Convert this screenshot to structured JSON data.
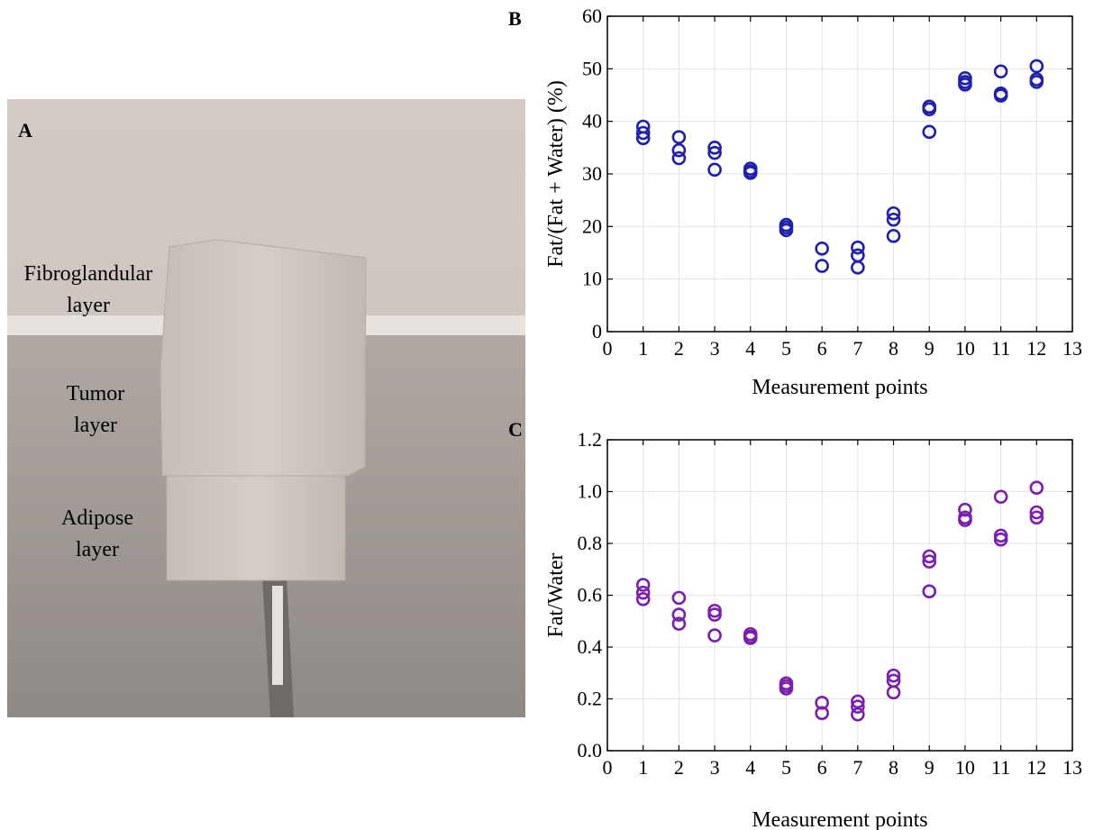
{
  "photo": {
    "panel_label": "A",
    "labels": [
      {
        "lines": [
          "Fibroglandular",
          "layer"
        ]
      },
      {
        "lines": [
          "Tumor",
          "layer"
        ]
      },
      {
        "lines": [
          "Adipose",
          "layer"
        ]
      }
    ],
    "colors": {
      "wall": "#cdc4bf",
      "platform": "#a59e99",
      "phantom": "#cfc6c0",
      "phantom_shadow": "#b9b0ab"
    }
  },
  "chart_data": [
    {
      "type": "scatter",
      "panel_label": "B",
      "title": "",
      "xlabel": "Measurement points",
      "ylabel": "Fat/(Fat + Water) (%)",
      "xlim": [
        0,
        13
      ],
      "ylim": [
        0,
        60
      ],
      "xticks": [
        "0",
        "1",
        "2",
        "3",
        "4",
        "5",
        "6",
        "7",
        "8",
        "9",
        "10",
        "11",
        "12",
        "13"
      ],
      "yticks": [
        "0",
        "10",
        "20",
        "30",
        "40",
        "50",
        "60"
      ],
      "xtick_values": [
        0,
        1,
        2,
        3,
        4,
        5,
        6,
        7,
        8,
        9,
        10,
        11,
        12,
        13
      ],
      "ytick_values": [
        0,
        10,
        20,
        30,
        40,
        50,
        60
      ],
      "grid": true,
      "marker": "open-circle",
      "color": "#1f1fb0",
      "points": [
        [
          1,
          39
        ],
        [
          1,
          37.8
        ],
        [
          1,
          36.8
        ],
        [
          2,
          37
        ],
        [
          2,
          34.5
        ],
        [
          2,
          33
        ],
        [
          3,
          35
        ],
        [
          3,
          34
        ],
        [
          3,
          30.8
        ],
        [
          4,
          31
        ],
        [
          4,
          30.5
        ],
        [
          4,
          30.2
        ],
        [
          5,
          20.3
        ],
        [
          5,
          19.8
        ],
        [
          5,
          19.3
        ],
        [
          6,
          15.8
        ],
        [
          6,
          12.5
        ],
        [
          7,
          16
        ],
        [
          7,
          14.5
        ],
        [
          7,
          12.2
        ],
        [
          8,
          22.5
        ],
        [
          8,
          21.3
        ],
        [
          8,
          18.2
        ],
        [
          9,
          42.8
        ],
        [
          9,
          42.3
        ],
        [
          9,
          38
        ],
        [
          10,
          48.2
        ],
        [
          10,
          47.5
        ],
        [
          10,
          47
        ],
        [
          11,
          49.5
        ],
        [
          11,
          45.3
        ],
        [
          11,
          44.9
        ],
        [
          12,
          50.5
        ],
        [
          12,
          48
        ],
        [
          12,
          47.5
        ]
      ]
    },
    {
      "type": "scatter",
      "panel_label": "C",
      "title": "",
      "xlabel": "Measurement points",
      "ylabel": "Fat/Water",
      "xlim": [
        0,
        13
      ],
      "ylim": [
        0,
        1.2
      ],
      "xticks": [
        "0",
        "1",
        "2",
        "3",
        "4",
        "5",
        "6",
        "7",
        "8",
        "9",
        "10",
        "11",
        "12",
        "13"
      ],
      "yticks": [
        "0.0",
        "0.2",
        "0.4",
        "0.6",
        "0.8",
        "1.0",
        "1.2"
      ],
      "xtick_values": [
        0,
        1,
        2,
        3,
        4,
        5,
        6,
        7,
        8,
        9,
        10,
        11,
        12,
        13
      ],
      "ytick_values": [
        0,
        0.2,
        0.4,
        0.6,
        0.8,
        1.0,
        1.2
      ],
      "grid": true,
      "marker": "open-circle",
      "color": "#7b1fb0",
      "points": [
        [
          1,
          0.64
        ],
        [
          1,
          0.61
        ],
        [
          1,
          0.585
        ],
        [
          2,
          0.59
        ],
        [
          2,
          0.525
        ],
        [
          2,
          0.49
        ],
        [
          3,
          0.54
        ],
        [
          3,
          0.525
        ],
        [
          3,
          0.445
        ],
        [
          4,
          0.45
        ],
        [
          4,
          0.44
        ],
        [
          4,
          0.435
        ],
        [
          5,
          0.26
        ],
        [
          5,
          0.25
        ],
        [
          5,
          0.24
        ],
        [
          6,
          0.185
        ],
        [
          6,
          0.145
        ],
        [
          7,
          0.19
        ],
        [
          7,
          0.17
        ],
        [
          7,
          0.14
        ],
        [
          8,
          0.29
        ],
        [
          8,
          0.27
        ],
        [
          8,
          0.225
        ],
        [
          9,
          0.75
        ],
        [
          9,
          0.73
        ],
        [
          9,
          0.615
        ],
        [
          10,
          0.93
        ],
        [
          10,
          0.9
        ],
        [
          10,
          0.89
        ],
        [
          11,
          0.98
        ],
        [
          11,
          0.83
        ],
        [
          11,
          0.815
        ],
        [
          12,
          1.015
        ],
        [
          12,
          0.92
        ],
        [
          12,
          0.9
        ]
      ]
    }
  ]
}
